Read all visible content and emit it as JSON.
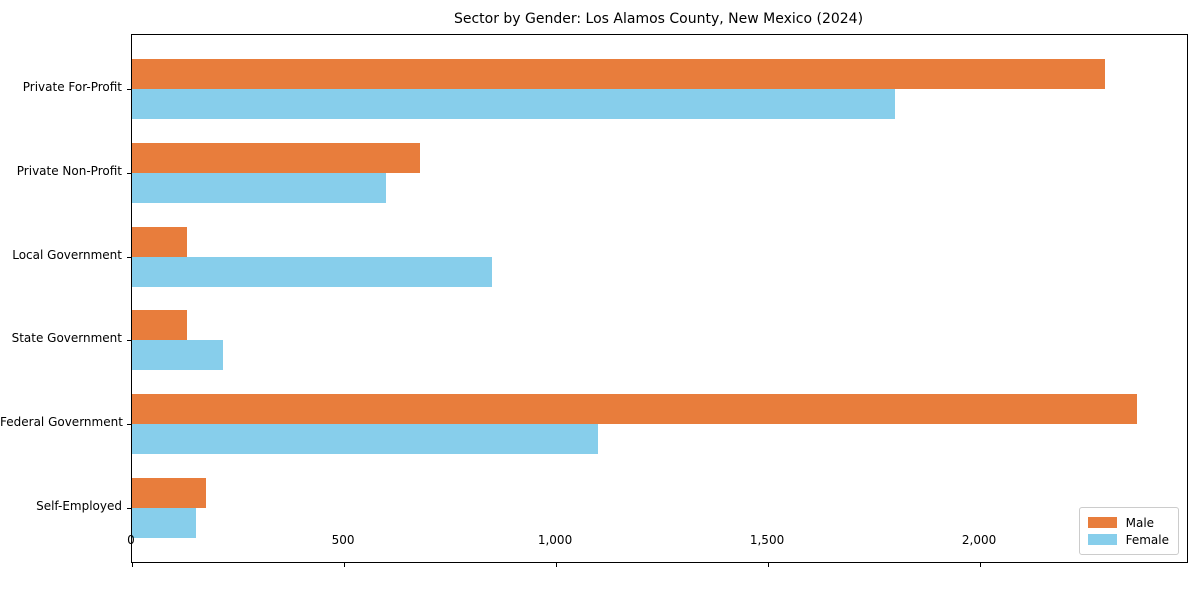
{
  "figure": {
    "title": "Sector by Gender: Los Alamos County, New Mexico (2024)"
  },
  "chart_data": {
    "type": "bar",
    "orientation": "horizontal",
    "title": "Sector by Gender: Los Alamos County, New Mexico (2024)",
    "xlabel": "",
    "ylabel": "",
    "categories": [
      "Private For-Profit",
      "Private Non-Profit",
      "Local Government",
      "State Government",
      "Federal Government",
      "Self-Employed"
    ],
    "series": [
      {
        "name": "Male",
        "color": "#E87D3C",
        "values": [
          2295,
          680,
          130,
          130,
          2370,
          175
        ]
      },
      {
        "name": "Female",
        "color": "#87CEEB",
        "values": [
          1800,
          600,
          850,
          215,
          1100,
          150
        ]
      }
    ],
    "xlim": [
      0,
      2488
    ],
    "x_ticks": [
      0,
      500,
      1000,
      1500,
      2000
    ],
    "x_tick_labels": [
      "0",
      "500",
      "1,000",
      "1,500",
      "2,000"
    ],
    "grid": false,
    "legend": {
      "position": "lower-right",
      "entries": [
        {
          "label": "Male",
          "color": "#E87D3C"
        },
        {
          "label": "Female",
          "color": "#87CEEB"
        }
      ]
    }
  }
}
